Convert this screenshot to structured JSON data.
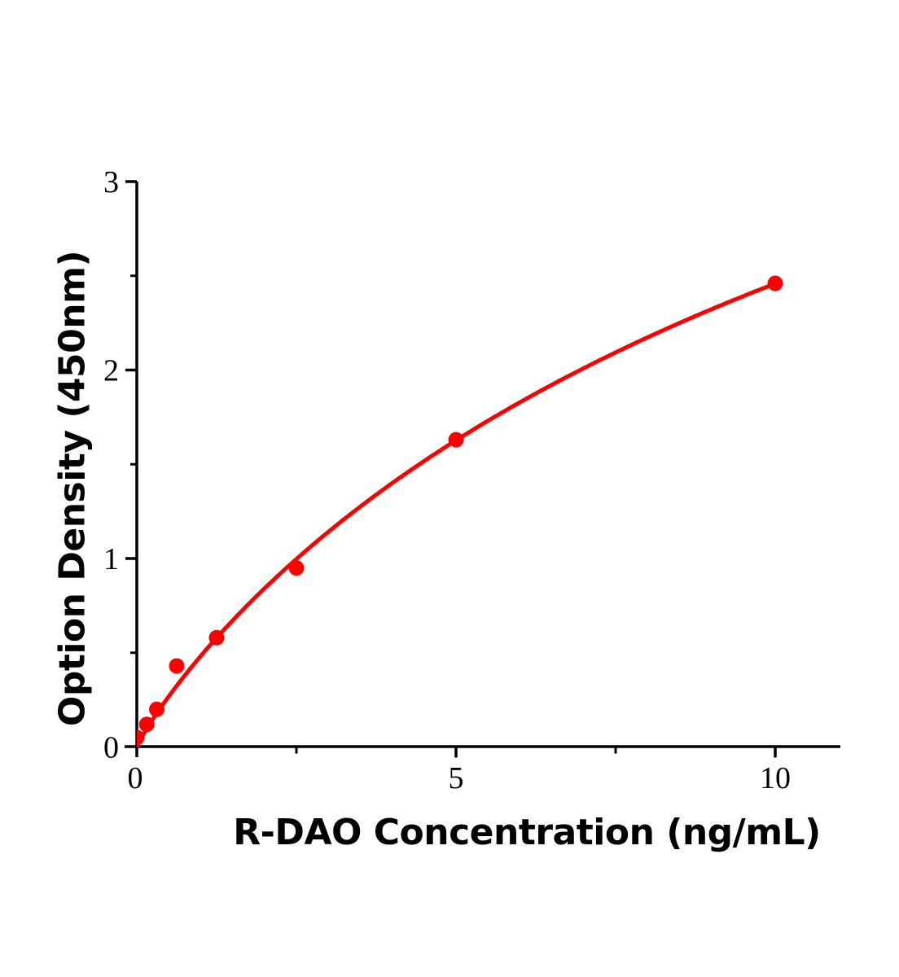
{
  "chart_data": {
    "type": "scatter",
    "title": "",
    "xlabel": "R-DAO Concentration (ng/mL)",
    "ylabel": "Option Density (450nm)",
    "x": [
      0,
      0.156,
      0.3125,
      0.625,
      1.25,
      2.5,
      5,
      10
    ],
    "y": [
      0.05,
      0.12,
      0.2,
      0.43,
      0.58,
      0.95,
      1.63,
      2.46
    ],
    "xlim": [
      0,
      11
    ],
    "ylim": [
      0,
      3
    ],
    "x_ticks": [
      {
        "v": 0,
        "label": "0"
      },
      {
        "v": 5,
        "label": "5"
      },
      {
        "v": 10,
        "label": "10"
      }
    ],
    "x_minor_ticks": [
      2.5,
      7.5
    ],
    "y_ticks": [
      {
        "v": 0,
        "label": "0"
      },
      {
        "v": 1,
        "label": "1"
      },
      {
        "v": 2,
        "label": "2"
      },
      {
        "v": 3,
        "label": "3"
      }
    ],
    "y_minor_ticks": [
      0.5,
      1.5,
      2.5
    ],
    "grid": false,
    "legend": false,
    "marker_color": "#ff0000",
    "line_color": "#ff0000",
    "axis_color": "#000000",
    "fit_curve": {
      "type": "4PL logistic",
      "bottom": 0,
      "top": 6,
      "ec50": 15,
      "hill": 0.9
    }
  }
}
